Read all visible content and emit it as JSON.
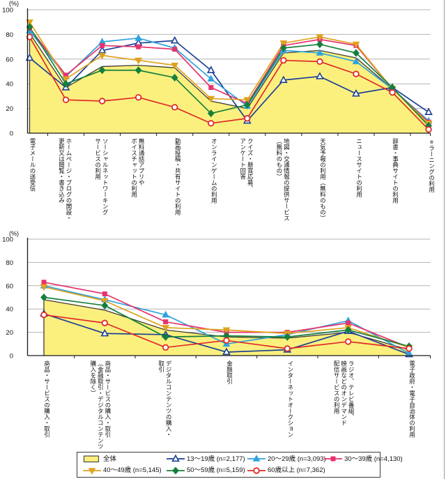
{
  "colors": {
    "overall_fill": "#FBF07E",
    "overall_line": "#3F3A2E",
    "age_13_19": "#1C3F96",
    "age_20_29": "#2FA3DD",
    "age_30_39": "#E7336E",
    "age_40_49": "#DFA21E",
    "age_50_59": "#15803C",
    "age_60_plus": "#E02A2A",
    "grid": "#B4B4B4",
    "axis": "#1A1A1A",
    "text": "#111111",
    "legend_border": "#3A3A3A"
  },
  "chart_data": [
    {
      "type": "line",
      "unit_label": "(%)",
      "ylim": [
        0,
        100
      ],
      "yticks": [
        0,
        20,
        40,
        60,
        80,
        100
      ],
      "grid": true,
      "categories": [
        "電子メールの送受信",
        "ホームページ・ブログの開設・更新又は閲覧・書き込み",
        "ソーシャルネットワーキングサービスの利用",
        "無料通話アプリやボイスチャットの利用",
        "動画投稿・共有サイトの利用",
        "オンラインゲームの利用",
        "クイズ・懸賞応募、アンケート回答",
        "地図・交通情報の提供サービス（無料のもの）",
        "天気予報の利用（無料のもの）",
        "ニュースサイトの利用",
        "辞書・事典サイトの利用",
        "eラーニングの利用"
      ],
      "category_columns": [
        [
          "電子メールの送受信"
        ],
        [
          "ホームページ・ブログの開設・",
          "更新又は閲覧・書き込み"
        ],
        [
          "ソーシャルネットワーキング",
          "サービスの利用"
        ],
        [
          "無料通話アプリや",
          "ボイスチャットの利用"
        ],
        [
          "動画投稿・共有サイトの利用"
        ],
        [
          "オンラインゲームの利用"
        ],
        [
          "クイズ・懸賞応募、",
          "アンケート回答"
        ],
        [
          "地図・交通情報の提供サービス",
          "（無料のもの）"
        ],
        [
          "天気予報の利用（無料のもの）"
        ],
        [
          "ニュースサイトの利用"
        ],
        [
          "辞書・事典サイトの利用"
        ],
        [
          "eラーニングの利用"
        ]
      ],
      "series": [
        {
          "name": "全体",
          "role": "area",
          "values": [
            81,
            37,
            54,
            55,
            53,
            26,
            20,
            65,
            67,
            61,
            36,
            8
          ]
        },
        {
          "name": "13～19歳",
          "marker": "triangle-open",
          "color_key": "age_13_19",
          "values": [
            61,
            37,
            67,
            73,
            75,
            51,
            10,
            43,
            46,
            32,
            37,
            17
          ]
        },
        {
          "name": "20～29歳",
          "marker": "triangle",
          "color_key": "age_20_29",
          "values": [
            83,
            46,
            74,
            77,
            69,
            44,
            22,
            67,
            65,
            58,
            36,
            10
          ]
        },
        {
          "name": "30～39歳",
          "marker": "square",
          "color_key": "age_30_39",
          "values": [
            85,
            47,
            71,
            70,
            68,
            37,
            24,
            71,
            76,
            71,
            36,
            9
          ]
        },
        {
          "name": "40～49歳",
          "marker": "triangle-down",
          "color_key": "age_40_49",
          "values": [
            90,
            44,
            63,
            59,
            55,
            28,
            27,
            73,
            78,
            72,
            36,
            8
          ]
        },
        {
          "name": "50～59歳",
          "marker": "diamond",
          "color_key": "age_50_59",
          "values": [
            86,
            40,
            51,
            51,
            45,
            16,
            23,
            69,
            72,
            65,
            37,
            6
          ]
        },
        {
          "name": "60歳以上",
          "marker": "circle-open",
          "color_key": "age_60_plus",
          "values": [
            78,
            27,
            26,
            29,
            21,
            8,
            12,
            59,
            58,
            48,
            33,
            3
          ]
        }
      ]
    },
    {
      "type": "line",
      "unit_label": "(%)",
      "ylim": [
        0,
        100
      ],
      "yticks": [
        0,
        20,
        40,
        60,
        80,
        100
      ],
      "grid": true,
      "categories": [
        "商品・サービスの購入・取引",
        "商品・サービスの購入・取引（金融取引・デジタルコンテンツ購入を除く）",
        "デジタルコンテンツの購入・取引",
        "金融取引",
        "インターネットオークション",
        "ラジオ、テレビ番組、映画などのオンデマンド配信サービスの利用",
        "電子政府・電子自治体の利用"
      ],
      "category_columns": [
        [
          "商品・サービスの購入・取引"
        ],
        [
          "商品・サービスの購入・取引",
          "（金融取引・デジタルコンテンツ",
          "購入を除く）"
        ],
        [
          "デジタルコンテンツの購入・",
          "取引"
        ],
        [
          "金融取引"
        ],
        [
          "インターネットオークション"
        ],
        [
          "ラジオ、テレビ番組、",
          "映画などのオンデマンド",
          "配信サービスの利用"
        ],
        [
          "電子政府・電子自治体の利用"
        ]
      ],
      "series": [
        {
          "name": "全体",
          "role": "area",
          "values": [
            48,
            39,
            22,
            16,
            15,
            20,
            5
          ]
        },
        {
          "name": "13～19歳",
          "marker": "triangle-open",
          "color_key": "age_13_19",
          "values": [
            36,
            19,
            18,
            3,
            5,
            21,
            1
          ]
        },
        {
          "name": "20～29歳",
          "marker": "triangle",
          "color_key": "age_20_29",
          "values": [
            60,
            48,
            35,
            10,
            18,
            30,
            2
          ]
        },
        {
          "name": "30～39歳",
          "marker": "square",
          "color_key": "age_30_39",
          "values": [
            63,
            53,
            29,
            20,
            20,
            28,
            7
          ]
        },
        {
          "name": "40～49歳",
          "marker": "triangle-down",
          "color_key": "age_40_49",
          "values": [
            59,
            47,
            24,
            22,
            19,
            24,
            7
          ]
        },
        {
          "name": "50～59歳",
          "marker": "diamond",
          "color_key": "age_50_59",
          "values": [
            50,
            43,
            16,
            17,
            16,
            22,
            8
          ]
        },
        {
          "name": "60歳以上",
          "marker": "circle-open",
          "color_key": "age_60_plus",
          "values": [
            35,
            28,
            7,
            13,
            6,
            12,
            6
          ]
        }
      ]
    }
  ],
  "legend": {
    "items": [
      {
        "label": "全体",
        "swatch": "area"
      },
      {
        "label": "13～19歳 (n=2,177)",
        "marker": "triangle-open",
        "color_key": "age_13_19"
      },
      {
        "label": "20～29歳 (n=3,093)",
        "marker": "triangle",
        "color_key": "age_20_29"
      },
      {
        "label": "30～39歳 (n=4,130)",
        "marker": "square",
        "color_key": "age_30_39"
      },
      {
        "label": "40～49歳 (n=5,145)",
        "marker": "triangle-down",
        "color_key": "age_40_49"
      },
      {
        "label": "50～59歳 (n=5,159)",
        "marker": "diamond",
        "color_key": "age_50_59"
      },
      {
        "label": "60歳以上 (n=7,362)",
        "marker": "circle-open",
        "color_key": "age_60_plus"
      }
    ]
  }
}
